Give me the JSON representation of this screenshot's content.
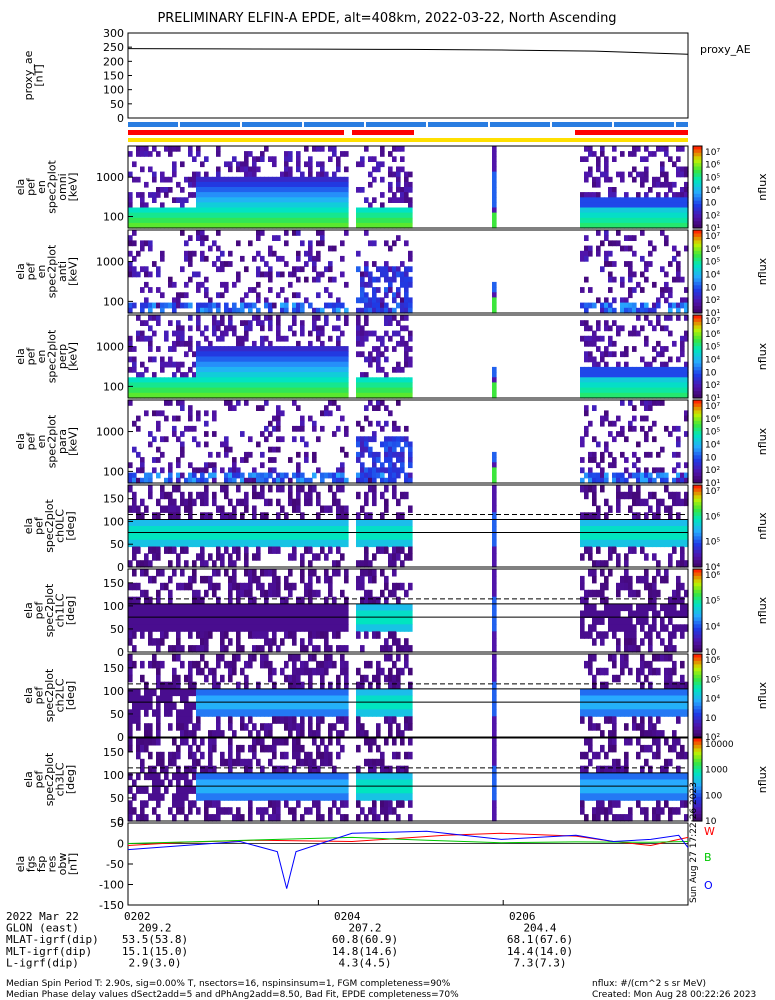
{
  "title": "PRELIMINARY ELFIN-A EPDE, alt=408km, 2022-03-22, North Ascending",
  "chart_data": [
    {
      "type": "line",
      "ylabel": [
        "proxy_ae",
        "[nT]"
      ],
      "yticks": [
        "300",
        "250",
        "200",
        "150",
        "100",
        "50",
        "0"
      ],
      "ylim": [
        0,
        300
      ],
      "series": [
        {
          "name": "proxy_AE",
          "t": [
            0,
            0.5,
            1.0,
            1.5,
            2.0,
            2.5,
            3.0
          ],
          "values": [
            245,
            244,
            243,
            242,
            240,
            236,
            225
          ]
        }
      ],
      "legend": "proxy_AE"
    },
    {
      "type": "heatmap",
      "ylabel": [
        "ela",
        "pef",
        "en",
        "spec2plot",
        "omni",
        "[keV]"
      ],
      "yticks": [
        "1000",
        "100"
      ],
      "cbar_label": "nflux",
      "cbar_ticks": [
        "10⁷",
        "10⁶",
        "10⁵",
        "10⁴",
        "10⁳",
        "10²",
        "10¹"
      ]
    },
    {
      "type": "heatmap",
      "ylabel": [
        "ela",
        "pef",
        "en",
        "spec2plot",
        "anti",
        "[keV]"
      ],
      "yticks": [
        "1000",
        "100"
      ],
      "cbar_label": "nflux",
      "cbar_ticks": [
        "10⁷",
        "10⁶",
        "10⁵",
        "10⁴",
        "10⁳",
        "10²",
        "10¹"
      ]
    },
    {
      "type": "heatmap",
      "ylabel": [
        "ela",
        "pef",
        "en",
        "spec2plot",
        "perp",
        "[keV]"
      ],
      "yticks": [
        "1000",
        "100"
      ],
      "cbar_label": "nflux",
      "cbar_ticks": [
        "10⁷",
        "10⁶",
        "10⁵",
        "10⁴",
        "10⁳",
        "10²",
        "10¹"
      ]
    },
    {
      "type": "heatmap",
      "ylabel": [
        "ela",
        "pef",
        "en",
        "spec2plot",
        "para",
        "[keV]"
      ],
      "yticks": [
        "1000",
        "100"
      ],
      "cbar_label": "nflux",
      "cbar_ticks": [
        "10⁷",
        "10⁶",
        "10⁵",
        "10⁴",
        "10⁳",
        "10²",
        "10¹"
      ]
    },
    {
      "type": "heatmap",
      "ylabel": [
        "ela",
        "pef",
        "spec2plot",
        "ch0LC",
        "[deg]"
      ],
      "yticks": [
        "150",
        "100",
        "50",
        "0"
      ],
      "ylim": [
        0,
        180
      ],
      "cbar_label": "nflux",
      "cbar_ticks": [
        "10⁷",
        "10⁶",
        "10⁵",
        "10⁴"
      ]
    },
    {
      "type": "heatmap",
      "ylabel": [
        "ela",
        "pef",
        "spec2plot",
        "ch1LC",
        "[deg]"
      ],
      "yticks": [
        "150",
        "100",
        "50",
        "0"
      ],
      "ylim": [
        0,
        180
      ],
      "cbar_label": "nflux",
      "cbar_ticks": [
        "10⁶",
        "10⁵",
        "10⁴",
        "10⁳"
      ]
    },
    {
      "type": "heatmap",
      "ylabel": [
        "ela",
        "pef",
        "spec2plot",
        "ch2LC",
        "[deg]"
      ],
      "yticks": [
        "150",
        "100",
        "50",
        "0"
      ],
      "ylim": [
        0,
        180
      ],
      "cbar_label": "nflux",
      "cbar_ticks": [
        "10⁶",
        "10⁵",
        "10⁴",
        "10⁳",
        "10²"
      ]
    },
    {
      "type": "heatmap",
      "ylabel": [
        "ela",
        "pef",
        "spec2plot",
        "ch3LC",
        "[deg]"
      ],
      "yticks": [
        "150",
        "100",
        "50",
        "0"
      ],
      "ylim": [
        0,
        180
      ],
      "cbar_label": "nflux",
      "cbar_ticks": [
        "10000",
        "1000",
        "100",
        "10"
      ]
    },
    {
      "type": "line",
      "ylabel": [
        "ela",
        "fgs",
        "fsp",
        "res",
        "obw",
        "[nT]"
      ],
      "yticks": [
        "50",
        "0",
        "-50",
        "-100",
        "-150"
      ],
      "ylim": [
        -150,
        50
      ],
      "legend": [
        "W",
        "B",
        "O"
      ],
      "side_note": "Sun Aug 27 17:22:26 2023",
      "series": [
        {
          "name": "W",
          "color": "#ff0000",
          "t": [
            0,
            0.3,
            0.7,
            1.2,
            1.7,
            2.0,
            2.4,
            2.6,
            2.8,
            3.0
          ],
          "values": [
            -5,
            3,
            8,
            5,
            20,
            25,
            18,
            5,
            -5,
            15
          ]
        },
        {
          "name": "B",
          "color": "#00c800",
          "t": [
            0,
            0.4,
            0.8,
            1.2,
            1.6,
            2.0,
            2.4,
            2.8,
            3.0
          ],
          "values": [
            0,
            5,
            10,
            15,
            8,
            2,
            4,
            3,
            5
          ]
        },
        {
          "name": "O",
          "color": "#0000ff",
          "t": [
            0,
            0.3,
            0.6,
            0.8,
            0.85,
            0.9,
            1.2,
            1.6,
            2.0,
            2.4,
            2.6,
            2.8,
            2.95,
            3.0
          ],
          "values": [
            -15,
            -5,
            5,
            -20,
            -110,
            -20,
            25,
            30,
            10,
            20,
            5,
            10,
            20,
            -10
          ]
        }
      ]
    }
  ],
  "x_labels": [
    "0202",
    "0204",
    "0206"
  ],
  "footer": {
    "rows": [
      {
        "label": "2022 Mar 22",
        "vals": [
          "",
          "",
          ""
        ]
      },
      {
        "label": "GLON (east)",
        "vals": [
          "209.2",
          "207.2",
          "204.4"
        ]
      },
      {
        "label": "MLAT-igrf(dip)",
        "vals": [
          "53.5(53.8)",
          "60.8(60.9)",
          "68.1(67.6)"
        ]
      },
      {
        "label": "MLT-igrf(dip)",
        "vals": [
          "15.1(15.0)",
          "14.8(14.6)",
          "14.4(14.0)"
        ]
      },
      {
        "label": "L-igrf(dip)",
        "vals": [
          "2.9(3.0)",
          "4.3(4.5)",
          "7.3(7.3)"
        ]
      }
    ],
    "line1": "Median Spin Period T: 2.90s, sig=0.00% T, nsectors=16, nspinsinsum=1, FGM completeness=90%",
    "line2": "Median Phase delay values dSect2add=5 and dPhAng2add=8.50, Bad Fit, EPDE completeness=70%",
    "right1": "nflux: #/(cm^2 s sr MeV)",
    "right2": "Created: Mon Aug 28 00:22:26 2023"
  }
}
